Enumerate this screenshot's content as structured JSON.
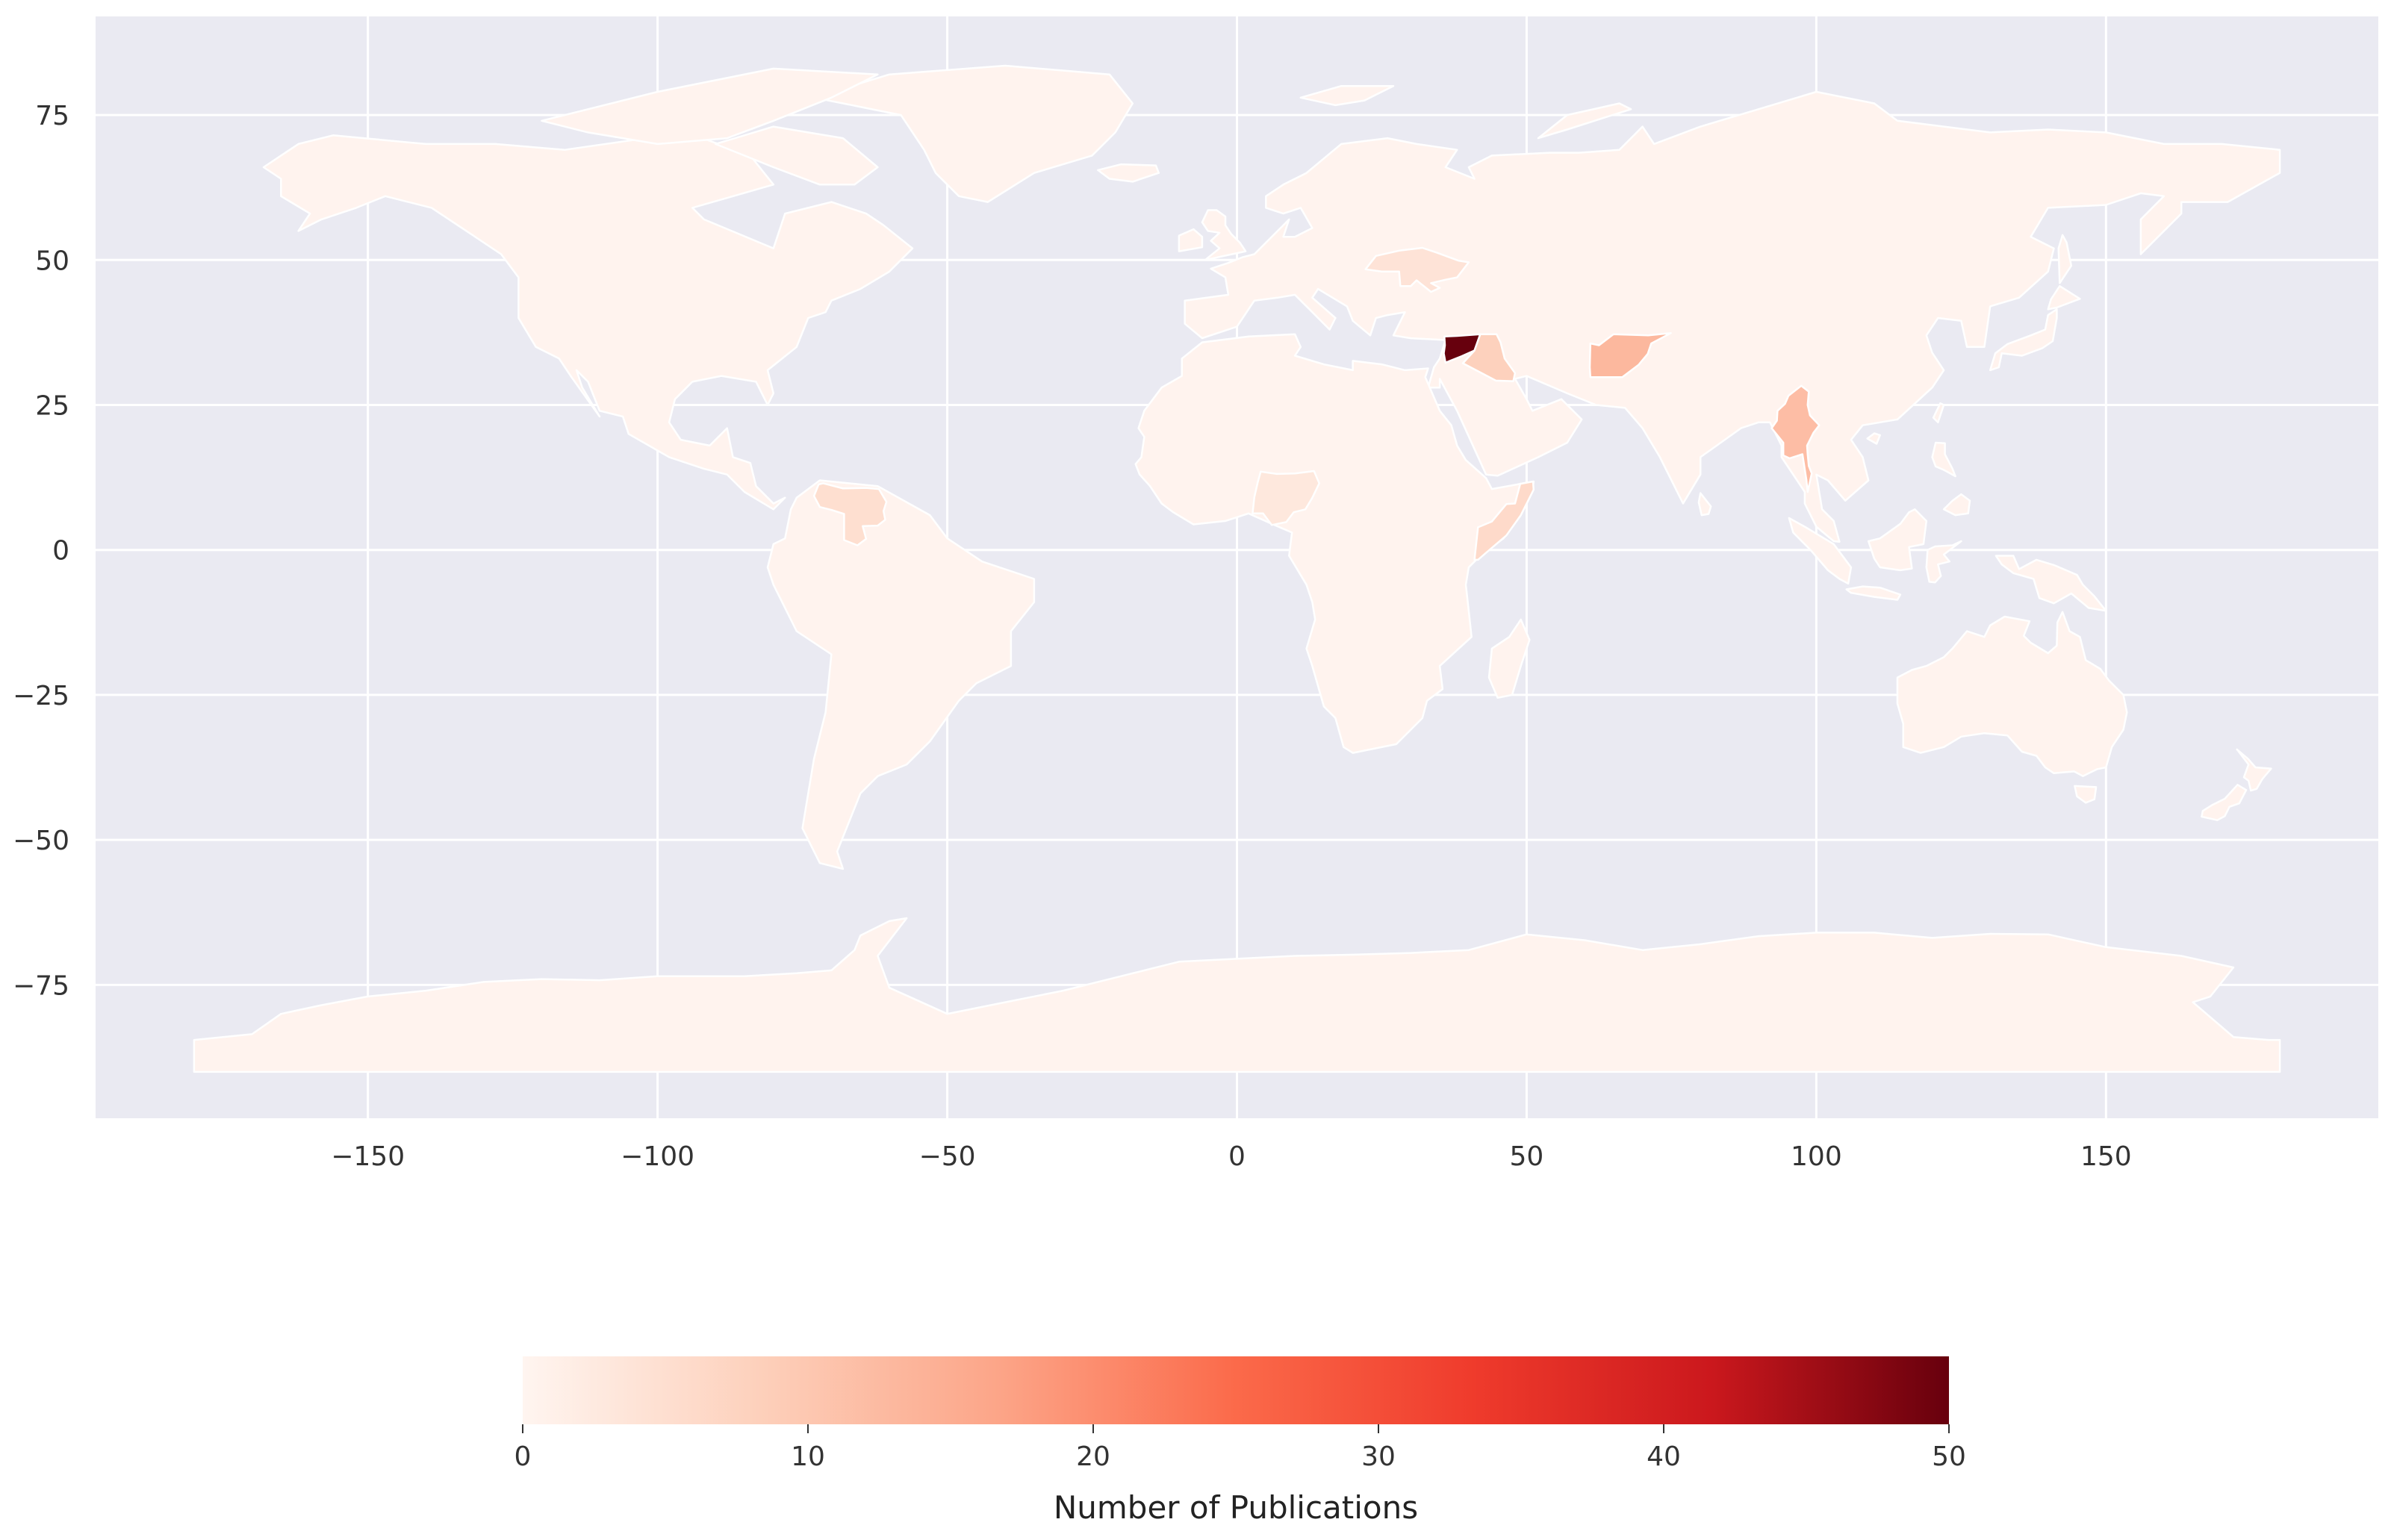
{
  "chart_data": {
    "type": "choropleth",
    "xlim": [
      -197,
      197
    ],
    "ylim": [
      -98,
      92
    ],
    "x_ticks": [
      -150,
      -100,
      -50,
      0,
      50,
      100,
      150
    ],
    "y_ticks": [
      75,
      50,
      25,
      0,
      -25,
      -50,
      -75
    ],
    "grid": true,
    "colormap": "Reds",
    "colorbar": {
      "label": "Number of Publications",
      "range": [
        0,
        50
      ],
      "ticks": [
        0,
        10,
        20,
        30,
        40,
        50
      ],
      "orientation": "horizontal",
      "placement": "bottom"
    },
    "highlighted_regions": [
      {
        "region": "Syria",
        "value": 50
      },
      {
        "region": "Afghanistan",
        "value": 13
      },
      {
        "region": "Myanmar",
        "value": 12
      },
      {
        "region": "Iraq",
        "value": 8
      },
      {
        "region": "Somalia",
        "value": 6
      },
      {
        "region": "Venezuela",
        "value": 5
      },
      {
        "region": "Ukraine",
        "value": 4
      },
      {
        "region": "Nigeria",
        "value": 3
      }
    ],
    "default_value": 1
  },
  "colors": {
    "axes_background": "#eaeaf2",
    "gridline": "#ffffff",
    "land_base": "#fff3ee",
    "cmap_stops": [
      "#fff5f0",
      "#fdd0bb",
      "#fca588",
      "#fb6a4a",
      "#ef3b2c",
      "#cb181d",
      "#67000d"
    ]
  }
}
